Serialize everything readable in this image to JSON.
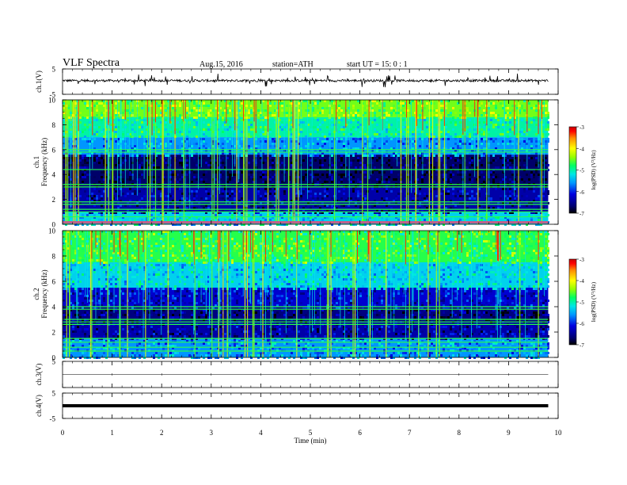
{
  "header": {
    "title": "VLF  Spectra",
    "date": "Aug.15, 2016",
    "station": "station=ATH",
    "start_ut": "start  UT  =    15: 0  : 1"
  },
  "colors": {
    "spectrogram_scale": [
      "#000000",
      "#000060",
      "#0000c8",
      "#0064ff",
      "#00c8ff",
      "#00ff96",
      "#64ff00",
      "#c8ff00",
      "#ffff00",
      "#ff9600",
      "#ff0000",
      "#c80000"
    ]
  },
  "chart_data": [
    {
      "type": "line",
      "panel": "ch1-voltage",
      "ylabel": "ch.1(V)",
      "ylim": [
        -5,
        5
      ],
      "yticks": [
        "5",
        "-5"
      ],
      "x_range_min": [
        0,
        9.8
      ],
      "description_level": "noisy waveform centered near +0.5 V with spikes to about ±2.5 V"
    },
    {
      "type": "heatmap",
      "panel": "ch1-spectrogram",
      "ylabel_lines": [
        "ch.1",
        "Frequency  (kHz)"
      ],
      "yticks": [
        "0",
        "2",
        "4",
        "6",
        "8",
        "10"
      ],
      "ylim": [
        0,
        10
      ],
      "colorbar_label": "log(PSD) (V²/Hz)",
      "colorbar_ticks": [
        "-3",
        "-4",
        "-5",
        "-6",
        "-7"
      ],
      "colorbar_range": [
        -7,
        -3
      ],
      "bands_khz": [
        {
          "from": 0,
          "to": 1.0,
          "level": -5.3
        },
        {
          "from": 1.0,
          "to": 3.0,
          "level": -6.4
        },
        {
          "from": 3.0,
          "to": 5.6,
          "level": -6.7
        },
        {
          "from": 5.6,
          "to": 7.0,
          "level": -5.6
        },
        {
          "from": 7.0,
          "to": 8.6,
          "level": -5.0
        },
        {
          "from": 8.6,
          "to": 10.0,
          "level": -4.5
        }
      ],
      "lines_khz": [
        0.2,
        0.6,
        1.0,
        1.2,
        1.6,
        1.8,
        3.0,
        3.2,
        4.4,
        5.8,
        6.0
      ]
    },
    {
      "type": "heatmap",
      "panel": "ch2-spectrogram",
      "ylabel_lines": [
        "ch.2",
        "Frequency  (kHz)"
      ],
      "yticks": [
        "0",
        "2",
        "4",
        "6",
        "8",
        "10"
      ],
      "ylim": [
        0,
        10
      ],
      "colorbar_label": "log(PSD) (V²/Hz)",
      "colorbar_ticks": [
        "-3",
        "-4",
        "-5",
        "-6",
        "-7"
      ],
      "colorbar_range": [
        -7,
        -3
      ],
      "bands_khz": [
        {
          "from": 0,
          "to": 1.5,
          "level": -5.6
        },
        {
          "from": 1.5,
          "to": 2.8,
          "level": -6.4
        },
        {
          "from": 2.8,
          "to": 4.0,
          "level": -6.6
        },
        {
          "from": 4.0,
          "to": 5.5,
          "level": -6.2
        },
        {
          "from": 5.5,
          "to": 7.5,
          "level": -5.3
        },
        {
          "from": 7.5,
          "to": 10.0,
          "level": -4.7
        }
      ],
      "lines_khz": [
        0.5,
        0.8,
        1.2,
        1.5,
        2.6,
        2.8,
        3.0,
        3.8,
        4.0
      ]
    },
    {
      "type": "line",
      "panel": "ch3-voltage",
      "ylabel": "ch.3(V)",
      "ylim": [
        -5,
        5
      ],
      "yticks": [
        "5"
      ],
      "level": 0
    },
    {
      "type": "line",
      "panel": "ch4-voltage",
      "ylabel": "ch.4(V)",
      "ylim": [
        -5,
        5
      ],
      "yticks": [
        "5",
        "-5"
      ],
      "level": 0,
      "thick": true
    }
  ],
  "x_axis": {
    "label": "Time  (min)",
    "ticks": [
      "0",
      "1",
      "2",
      "3",
      "4",
      "5",
      "6",
      "7",
      "8",
      "9",
      "10"
    ],
    "range": [
      0,
      10
    ],
    "data_end": 9.8
  }
}
